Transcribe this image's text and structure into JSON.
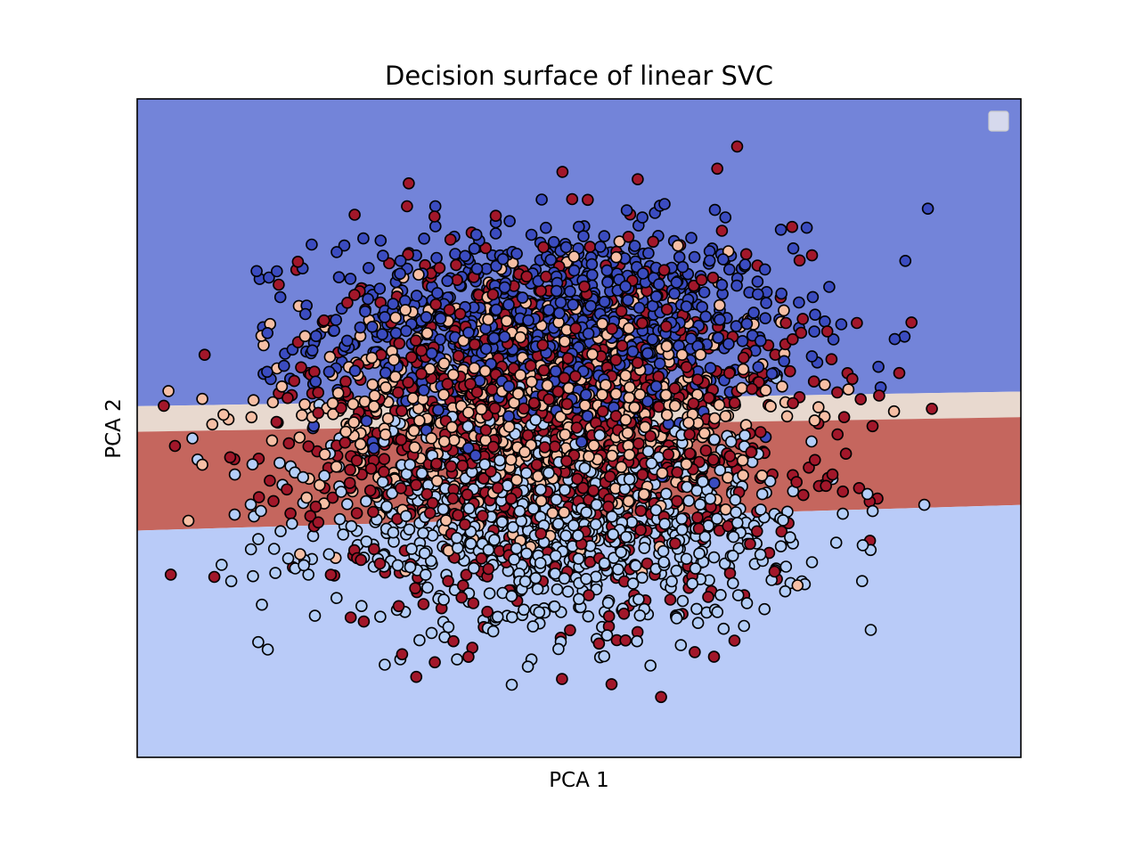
{
  "chart_data": {
    "type": "scatter",
    "title": "Decision surface of linear SVC",
    "xlabel": "PCA 1",
    "ylabel": "PCA 2",
    "xticks": [],
    "yticks": [],
    "xlim": [
      -4.5,
      5.0
    ],
    "ylim": [
      -4.5,
      4.5
    ],
    "grid": false,
    "legend": {
      "placement": "top-right",
      "entries": []
    },
    "decision_regions": [
      {
        "class_index": 0,
        "color": "#7384d9",
        "label": ""
      },
      {
        "class_index": 1,
        "color": "#e8d9cf",
        "label": ""
      },
      {
        "class_index": 2,
        "color": "#c5665e",
        "label": ""
      },
      {
        "class_index": 3,
        "color": "#b9cbf8",
        "label": ""
      }
    ],
    "decision_boundaries": [
      {
        "between": [
          0,
          1
        ],
        "y_at_xmin": 0.3,
        "y_at_xmax": 0.5
      },
      {
        "between": [
          1,
          2
        ],
        "y_at_xmin": -0.05,
        "y_at_xmax": 0.15
      },
      {
        "between": [
          2,
          3
        ],
        "y_at_xmin": -1.4,
        "y_at_xmax": -1.05
      }
    ],
    "point_classes": [
      {
        "class_index": 0,
        "color": "#3b4cc0"
      },
      {
        "class_index": 1,
        "color": "#f6bfa5"
      },
      {
        "class_index": 2,
        "color": "#a2172a"
      },
      {
        "class_index": 3,
        "color": "#b4cef8"
      }
    ],
    "series": [
      {
        "class_index": 0,
        "mean": [
          0.0,
          1.35
        ],
        "sd": [
          1.25,
          0.7
        ],
        "count": 900
      },
      {
        "class_index": 1,
        "mean": [
          -0.1,
          0.3
        ],
        "sd": [
          1.3,
          0.85
        ],
        "count": 700
      },
      {
        "class_index": 2,
        "mean": [
          -0.05,
          0.05
        ],
        "sd": [
          1.35,
          1.2
        ],
        "count": 1200
      },
      {
        "class_index": 3,
        "mean": [
          0.0,
          -1.3
        ],
        "sd": [
          1.3,
          0.7
        ],
        "count": 900
      }
    ],
    "outliers": [
      {
        "class_index": 0,
        "x": 4.0,
        "y": 3.0
      },
      {
        "class_index": 2,
        "x": 1.95,
        "y": 3.85
      },
      {
        "class_index": 2,
        "x": 0.6,
        "y": -3.5
      },
      {
        "class_index": 2,
        "x": -1.3,
        "y": -3.2
      },
      {
        "class_index": 2,
        "x": -1.5,
        "y": -3.4
      },
      {
        "class_index": 3,
        "x": 1.3,
        "y": -2.6
      },
      {
        "class_index": 3,
        "x": 3.3,
        "y": -1.6
      },
      {
        "class_index": 1,
        "x": -3.8,
        "y": 0.4
      },
      {
        "class_index": 1,
        "x": -3.8,
        "y": -0.5
      },
      {
        "class_index": 2,
        "x": -3.5,
        "y": -0.4
      },
      {
        "class_index": 0,
        "x": -3.1,
        "y": 1.3
      },
      {
        "class_index": 2,
        "x": 3.1,
        "y": 0.15
      },
      {
        "class_index": 3,
        "x": 3.35,
        "y": -0.9
      }
    ]
  }
}
